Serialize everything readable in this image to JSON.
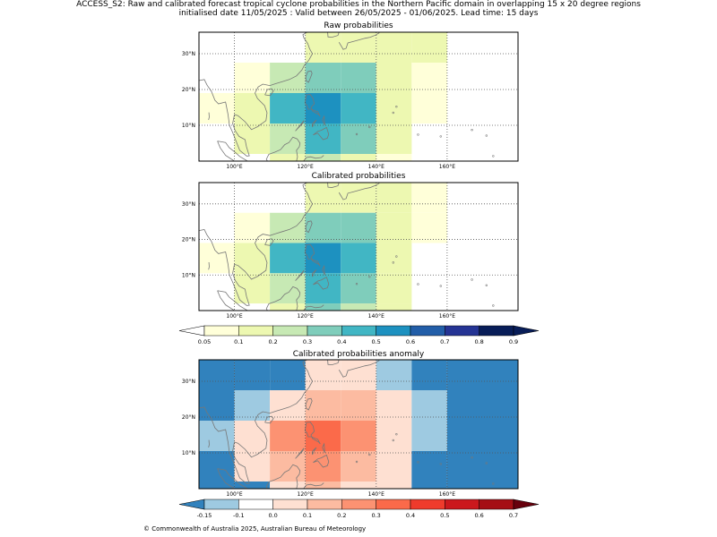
{
  "header": {
    "line1": "ACCESS_S2: Raw and calibrated forecast tropical cyclone probabilities in the Northern Pacific domain in overlapping 15 x 20 degree regions",
    "line2": "initialised date 11/05/2025 :  Valid between 26/05/2025 - 01/06/2025. Lead time: 15 days"
  },
  "panels": [
    {
      "title": "Raw probabilities",
      "kind": "prob",
      "grid": [
        [
          null,
          null,
          null,
          0.15,
          0.15,
          0.15,
          0.15
        ],
        [
          null,
          0.05,
          0.25,
          0.35,
          0.35,
          0.15,
          0.05
        ],
        [
          0.05,
          0.15,
          0.45,
          0.55,
          0.45,
          0.15,
          0.05
        ],
        [
          null,
          0.15,
          0.25,
          0.45,
          0.35,
          0.15,
          null
        ],
        [
          null,
          null,
          0.15,
          0.25,
          0.15,
          0.05,
          null
        ]
      ]
    },
    {
      "title": "Calibrated probabilities",
      "kind": "prob",
      "grid": [
        [
          null,
          null,
          null,
          0.15,
          0.15,
          0.15,
          0.05
        ],
        [
          null,
          0.05,
          0.25,
          0.35,
          0.35,
          0.15,
          0.05
        ],
        [
          0.05,
          0.15,
          0.45,
          0.55,
          0.45,
          0.15,
          null
        ],
        [
          null,
          0.15,
          0.25,
          0.45,
          0.35,
          0.15,
          null
        ],
        [
          null,
          null,
          0.15,
          0.35,
          0.25,
          0.15,
          null
        ]
      ]
    },
    {
      "title": "Calibrated probabilities anomaly",
      "kind": "anom",
      "grid": [
        [
          -0.2,
          -0.2,
          -0.2,
          0.0,
          0.0,
          -0.15,
          -0.2,
          -0.2
        ],
        [
          -0.2,
          -0.12,
          0.05,
          0.15,
          0.15,
          0.0,
          -0.12,
          -0.2
        ],
        [
          -0.12,
          0.0,
          0.25,
          0.35,
          0.25,
          0.0,
          -0.12,
          -0.2
        ],
        [
          -0.2,
          0.0,
          0.15,
          0.2,
          0.15,
          0.0,
          -0.2,
          -0.2
        ],
        [
          -0.2,
          -0.2,
          0.05,
          0.15,
          0.05,
          0.0,
          -0.2,
          -0.2
        ]
      ]
    }
  ],
  "axes": {
    "lon_ticks": [
      "100°E",
      "120°E",
      "140°E",
      "160°E"
    ],
    "lat_ticks": [
      "30°N",
      "20°N",
      "10°N"
    ],
    "lon_range": [
      90,
      180
    ],
    "lat_range": [
      0,
      36
    ],
    "grid_lines": "dotted"
  },
  "colorbar_prob": {
    "tick_labels": [
      "0.05",
      "0.1",
      "0.2",
      "0.3",
      "0.4",
      "0.5",
      "0.6",
      "0.7",
      "0.8",
      "0.9"
    ],
    "under_color": "#ffffff",
    "over_color": "#081d58",
    "colors": [
      "#ffffd9",
      "#edf8b1",
      "#c7e9b4",
      "#7fcdbb",
      "#41b6c4",
      "#1d91c0",
      "#225ea8",
      "#253494",
      "#081d58"
    ]
  },
  "colorbar_anom": {
    "tick_labels": [
      "-0.15",
      "-0.1",
      "0.0",
      "0.1",
      "0.2",
      "0.3",
      "0.4",
      "0.5",
      "0.6",
      "0.7"
    ],
    "under_color": "#3182bd",
    "over_color": "#67000d",
    "colors": [
      "#9ecae1",
      "#ffffff",
      "#fee0d2",
      "#fcbba1",
      "#fc9272",
      "#fb6a4a",
      "#ef3b2c",
      "#cb181d",
      "#a50f15"
    ]
  },
  "footer": {
    "copyright": "© Commonwealth of Australia 2025, Australian Bureau of Meteorology"
  }
}
